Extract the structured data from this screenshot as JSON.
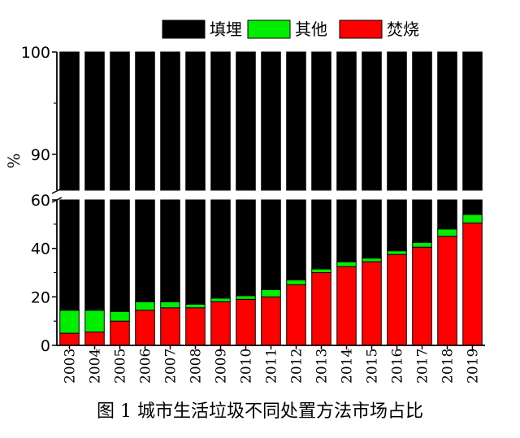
{
  "chart_data": {
    "type": "bar",
    "stacked": true,
    "broken_y_axis": true,
    "categories": [
      "2003",
      "2004",
      "2005",
      "2006",
      "2007",
      "2008",
      "2009",
      "2010",
      "2011",
      "2012",
      "2013",
      "2014",
      "2015",
      "2016",
      "2017",
      "2018",
      "2019"
    ],
    "series": [
      {
        "name": "焚烧",
        "color": "#ff0000",
        "values": [
          5,
          5.5,
          10,
          14.5,
          15.5,
          15.5,
          18,
          19,
          20,
          25,
          30,
          32.5,
          34.5,
          37.5,
          40.5,
          45,
          50.5
        ]
      },
      {
        "name": "其他",
        "color": "#00ee00",
        "values": [
          9.5,
          9,
          4,
          3.5,
          2.5,
          1.5,
          1.5,
          1.5,
          3,
          2,
          1.5,
          2,
          1.5,
          1.5,
          2,
          3,
          3.5
        ]
      },
      {
        "name": "填埋",
        "color": "#000000",
        "values": [
          85.5,
          85.5,
          86,
          82,
          82,
          83,
          80.5,
          79.5,
          77,
          73,
          68.5,
          65.5,
          64,
          61,
          57.5,
          52,
          46
        ]
      }
    ],
    "ylabel": "%",
    "upper_panel": {
      "ylim": [
        86.5,
        100
      ],
      "ticks": [
        "90",
        "100"
      ]
    },
    "lower_panel": {
      "ylim": [
        0,
        60
      ],
      "ticks": [
        "0",
        "20",
        "40",
        "60"
      ]
    },
    "legend_position": "top",
    "title": ""
  },
  "caption": "图 1  城市生活垃圾不同处置方法市场占比"
}
